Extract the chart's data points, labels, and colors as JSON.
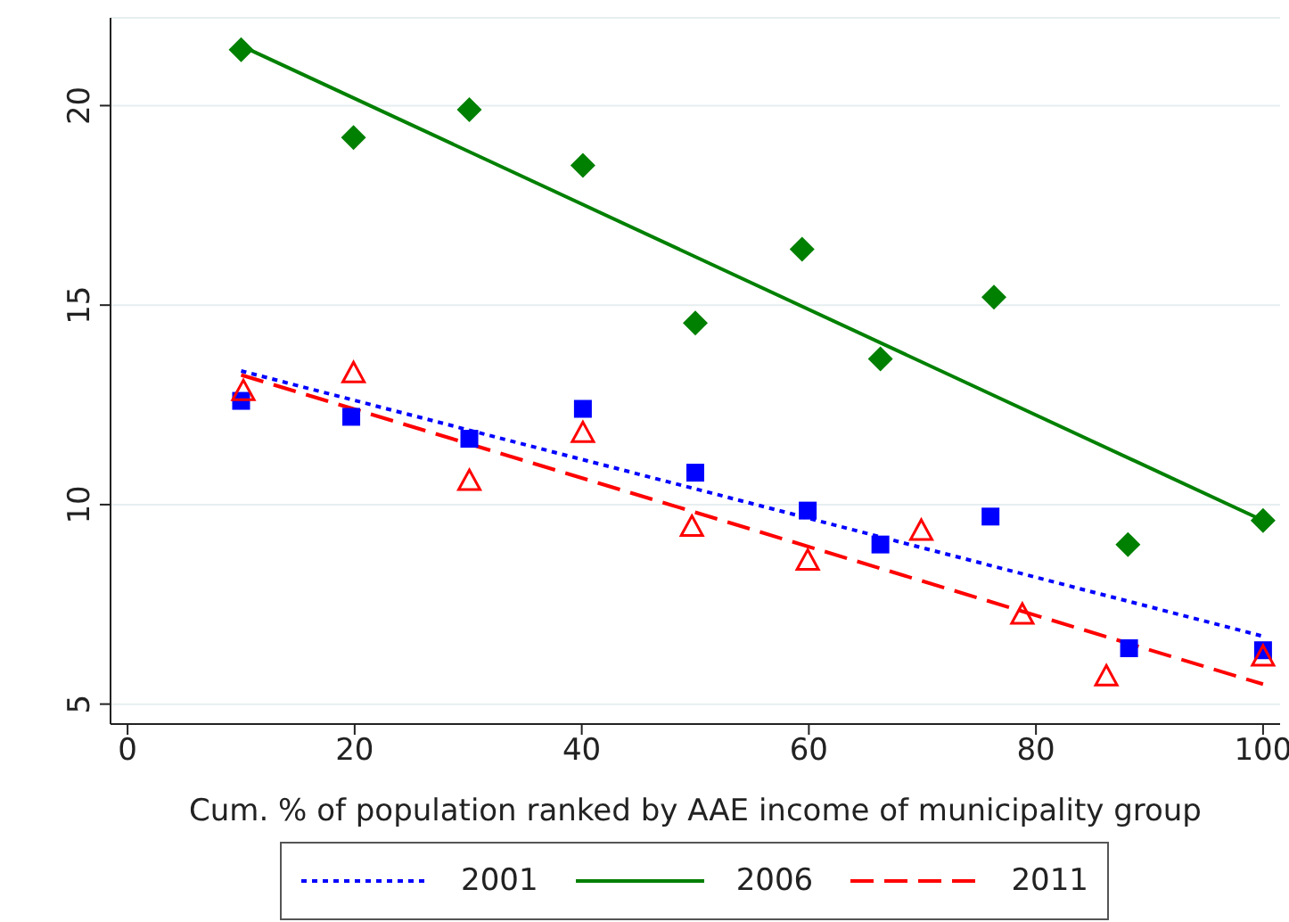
{
  "chart_data": {
    "type": "scatter",
    "xlabel": "Cum. % of population ranked by AAE income of municipality group",
    "xlim": [
      -1.5,
      101.5
    ],
    "xticks": [
      0,
      20,
      40,
      60,
      80,
      100
    ],
    "ylim": [
      4.5,
      22.2
    ],
    "yticks": [
      5,
      10,
      15,
      20
    ],
    "grid": "y",
    "legend": "bottom",
    "series": [
      {
        "marker": "square",
        "color": "#0000ff",
        "x": [
          10,
          19.7,
          30.1,
          40.1,
          50,
          59.9,
          66.3,
          76,
          88.2,
          100
        ],
        "values": [
          12.6,
          12.2,
          11.65,
          12.4,
          10.8,
          9.85,
          9.0,
          9.7,
          6.4,
          6.35
        ]
      },
      {
        "marker": "diamond",
        "color": "#008000",
        "x": [
          10,
          19.9,
          30.1,
          40.1,
          50,
          59.4,
          66.3,
          76.3,
          88.1,
          100
        ],
        "values": [
          21.4,
          19.2,
          19.9,
          18.5,
          14.55,
          16.4,
          13.65,
          15.2,
          9.0,
          9.6
        ]
      },
      {
        "marker": "triangle",
        "color": "#ff0000",
        "x": [
          10.2,
          19.9,
          30.1,
          40.1,
          49.7,
          59.9,
          69.9,
          78.8,
          86.2,
          100
        ],
        "values": [
          12.85,
          13.3,
          10.6,
          11.8,
          9.45,
          8.6,
          9.35,
          7.25,
          5.7,
          6.2
        ]
      },
      {
        "type": "line",
        "name": "2001",
        "color": "#0000ff",
        "line_style": "dotted",
        "x": [
          10,
          100
        ],
        "values": [
          13.35,
          6.7
        ]
      },
      {
        "type": "line",
        "name": "2006",
        "color": "#008000",
        "line_style": "solid",
        "x": [
          10,
          100
        ],
        "values": [
          21.5,
          9.6
        ]
      },
      {
        "type": "line",
        "name": "2011",
        "color": "#ff0000",
        "line_style": "dashed",
        "x": [
          10,
          100
        ],
        "values": [
          13.25,
          5.5
        ]
      }
    ]
  }
}
